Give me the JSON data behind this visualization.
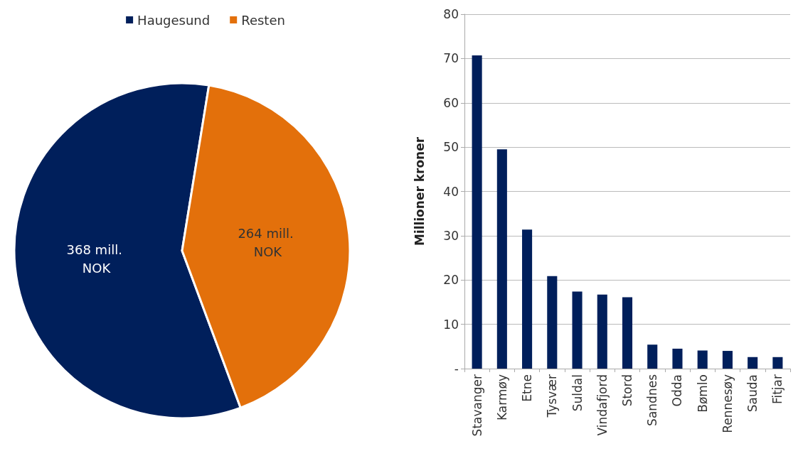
{
  "chart_data": [
    {
      "type": "pie",
      "categories": [
        "Haugesund",
        "Resten"
      ],
      "values": [
        368,
        264
      ],
      "colors": [
        "#001f5b",
        "#e3700b"
      ],
      "value_labels": [
        "368 mill. NOK",
        "264 mill. NOK"
      ],
      "legend": "top"
    },
    {
      "type": "bar",
      "ylabel": "Millioner kroner",
      "categories": [
        "Stavanger",
        "Karmøy",
        "Etne",
        "Tysvær",
        "Suldal",
        "Vindafjord",
        "Stord",
        "Sandnes",
        "Odda",
        "Bømlo",
        "Rennesøy",
        "Sauda",
        "Fitjar"
      ],
      "series": [
        {
          "color": "#001f5b",
          "values": [
            70.7,
            49.5,
            31.4,
            20.9,
            17.4,
            16.7,
            16.1,
            5.4,
            4.5,
            4.1,
            4.0,
            2.6,
            2.6
          ]
        }
      ],
      "ylim": [
        0,
        80
      ],
      "yticks": [
        {
          "value": 0,
          "label": "-"
        },
        10,
        20,
        30,
        40,
        50,
        60,
        70,
        80
      ],
      "grid": "y"
    }
  ]
}
